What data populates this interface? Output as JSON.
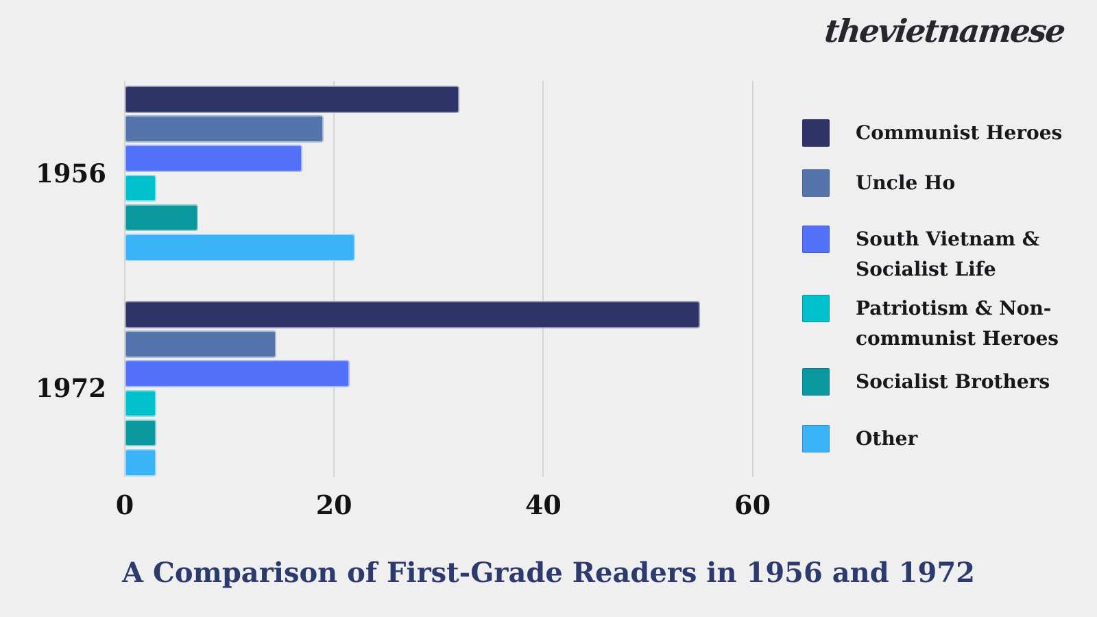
{
  "brand": {
    "logo_text": "thevietnamese"
  },
  "title": "A Comparison of First-Grade Readers in 1956 and 1972",
  "chart_data": {
    "type": "bar",
    "orientation": "horizontal",
    "title": "A Comparison of First-Grade Readers in 1956 and 1972",
    "categories": [
      "1956",
      "1972"
    ],
    "series": [
      {
        "name": "Communist Heroes",
        "color": "#2f3468",
        "values": [
          32,
          55
        ]
      },
      {
        "name": "Uncle Ho",
        "color": "#5574ab",
        "values": [
          19,
          14.5
        ]
      },
      {
        "name": "South Vietnam & Socialist Life",
        "color": "#5372fa",
        "values": [
          17,
          21.5
        ]
      },
      {
        "name": "Patriotism & Non-communist Heroes",
        "color": "#00c1cb",
        "values": [
          3,
          3
        ]
      },
      {
        "name": "Socialist Brothers",
        "color": "#0a989e",
        "values": [
          7,
          3
        ]
      },
      {
        "name": "Other",
        "color": "#3ab3f9",
        "values": [
          22,
          3
        ]
      }
    ],
    "x_ticks": [
      0,
      20,
      40,
      60
    ],
    "xlim": [
      0,
      62.8
    ],
    "grid": true,
    "legend_position": "right"
  },
  "legend": {
    "items": [
      {
        "lines": [
          "Communist Heroes"
        ],
        "color": "#2f3468"
      },
      {
        "lines": [
          "Uncle Ho"
        ],
        "color": "#5574ab"
      },
      {
        "lines": [
          "South Vietnam &",
          "Socialist Life"
        ],
        "color": "#5372fa"
      },
      {
        "lines": [
          "Patriotism & Non-",
          "communist Heroes"
        ],
        "color": "#00c1cb"
      },
      {
        "lines": [
          "Socialist Brothers"
        ],
        "color": "#0a989e"
      },
      {
        "lines": [
          "Other"
        ],
        "color": "#3ab3f9"
      }
    ]
  }
}
